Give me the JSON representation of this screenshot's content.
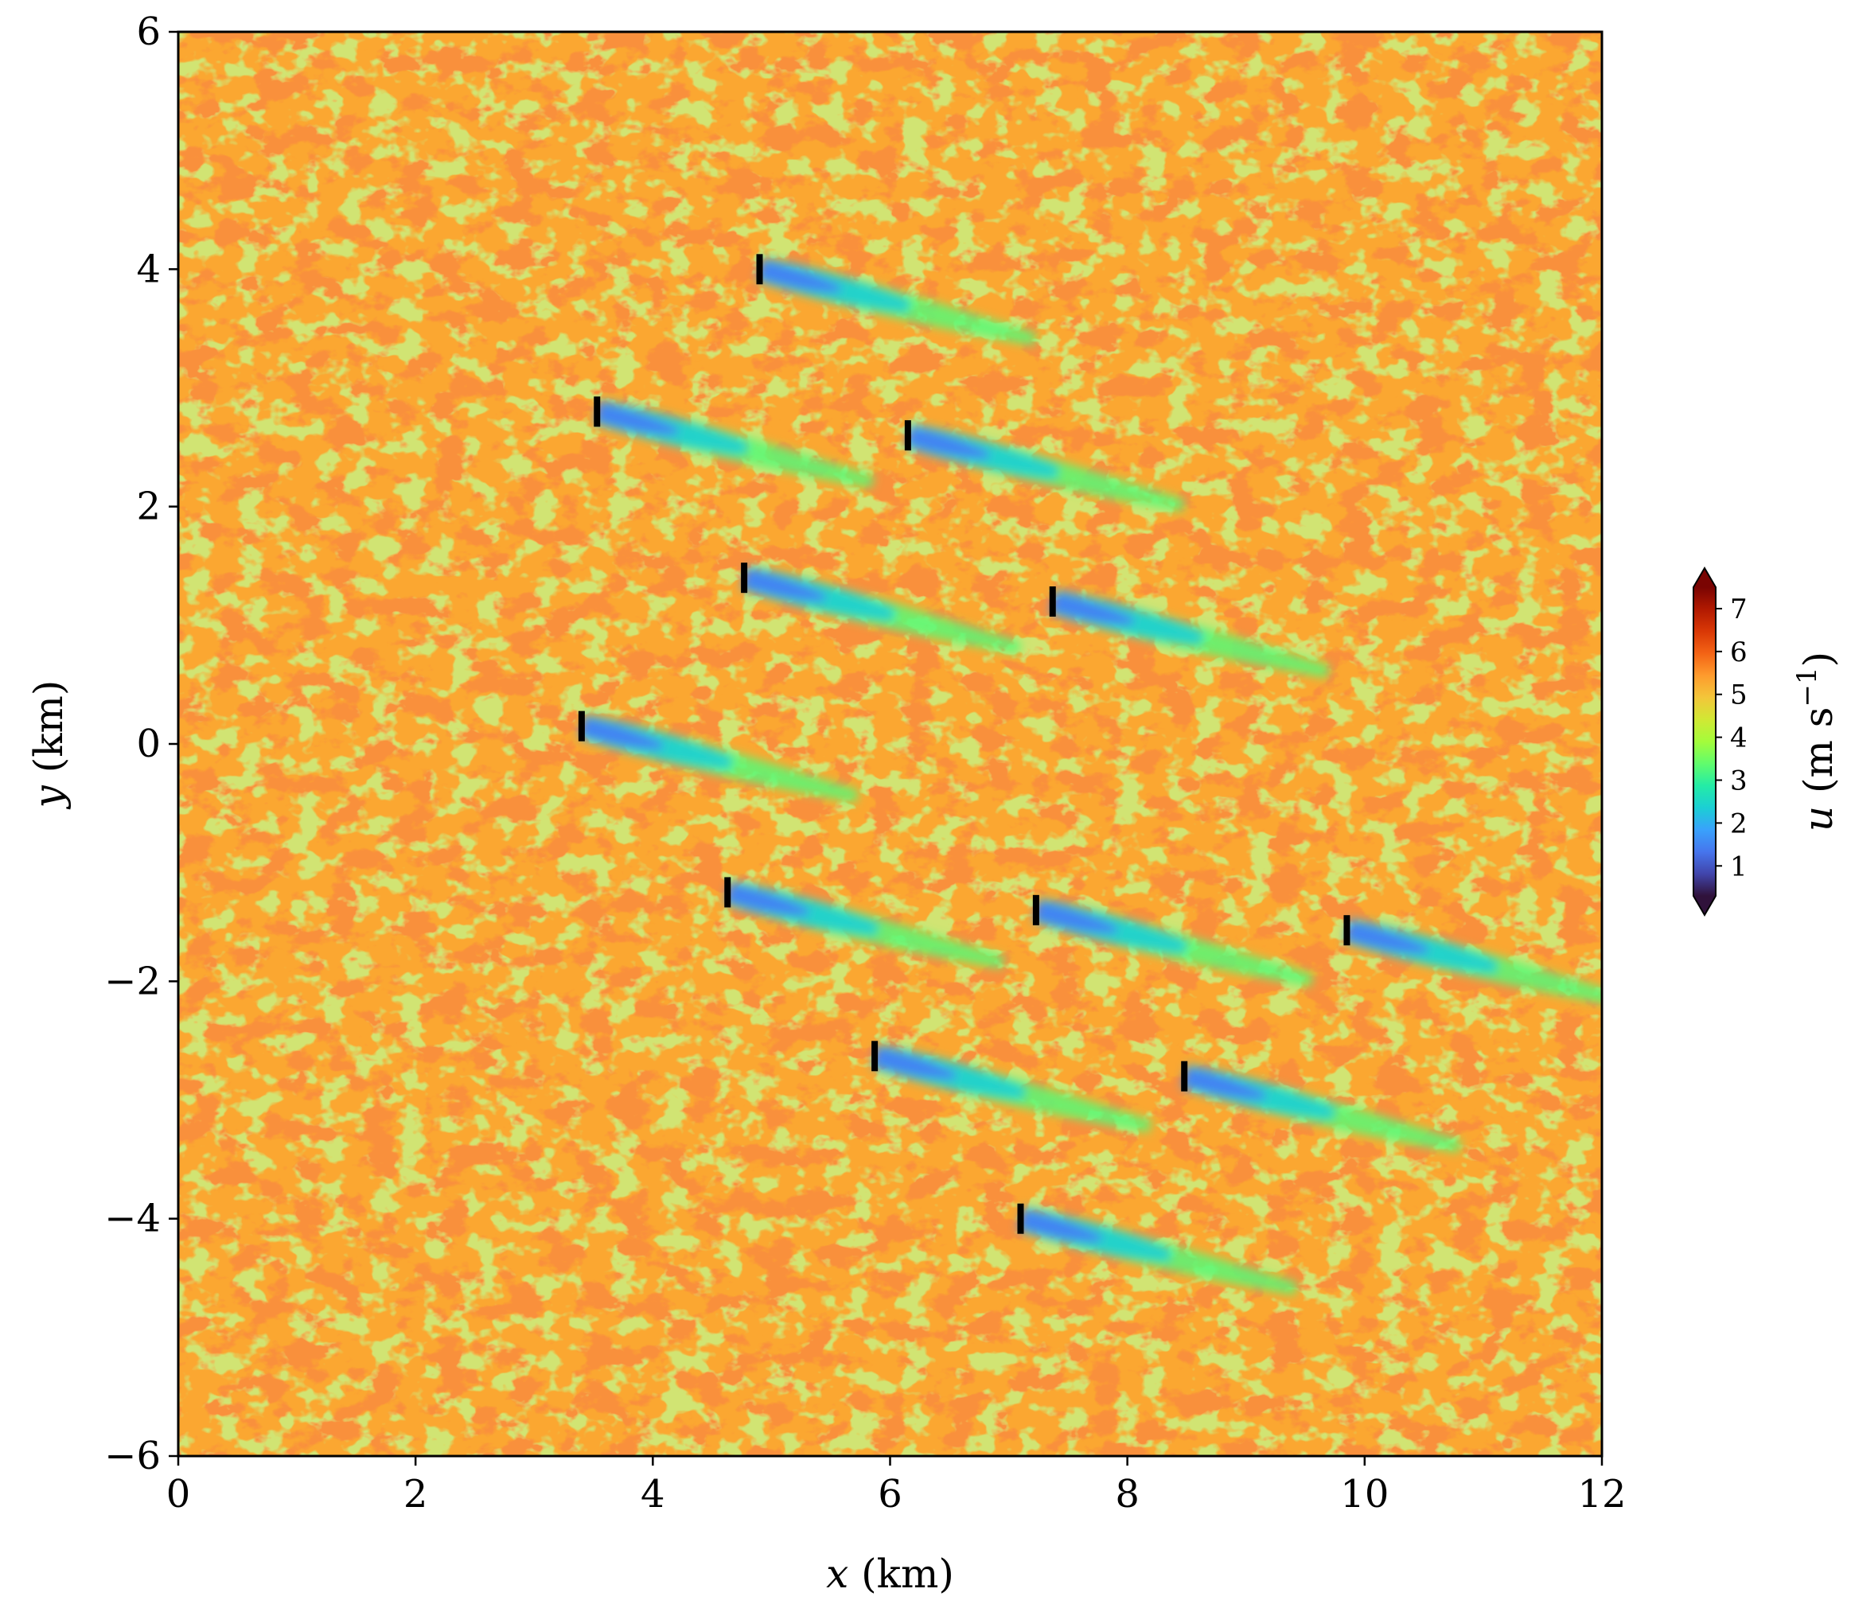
{
  "chart_data": {
    "type": "heatmap",
    "title": "",
    "xlabel": {
      "var": "x",
      "unit": " (km)"
    },
    "ylabel": {
      "var": "y",
      "unit": " (km)"
    },
    "xlim": [
      0,
      12
    ],
    "ylim": [
      -6,
      6
    ],
    "xticks": [
      0,
      2,
      4,
      6,
      8,
      10,
      12
    ],
    "yticks": [
      -6,
      -4,
      -2,
      0,
      2,
      4,
      6
    ],
    "xtick_labels": [
      "0",
      "2",
      "4",
      "6",
      "8",
      "10",
      "12"
    ],
    "ytick_labels": [
      "−6",
      "−4",
      "−2",
      "0",
      "2",
      "4",
      "6"
    ],
    "field": "u",
    "wind_direction_deg_clockwise_from_x": 14,
    "background_speed": 5.3,
    "colorbar": {
      "label_var": "u",
      "label_unit": " (m s",
      "label_exp": "−1",
      "label_close": ")",
      "min": 0.3,
      "max": 7.5,
      "ticks": [
        1,
        2,
        3,
        4,
        5,
        6,
        7
      ],
      "tick_labels": [
        "1",
        "2",
        "3",
        "4",
        "5",
        "6",
        "7"
      ],
      "extend": "both",
      "colormap": "turbo",
      "colormap_stops": [
        "#30123b",
        "#4145ab",
        "#4675ed",
        "#39a2fc",
        "#1bcfd4",
        "#24eca6",
        "#61fc6c",
        "#a4fc3b",
        "#d1e834",
        "#f3c63a",
        "#fe9b2d",
        "#f36315",
        "#d93806",
        "#b11901",
        "#7a0402"
      ]
    },
    "turbines": [
      {
        "x": 4.9,
        "y": 4.0
      },
      {
        "x": 3.53,
        "y": 2.8
      },
      {
        "x": 6.15,
        "y": 2.6
      },
      {
        "x": 4.77,
        "y": 1.4
      },
      {
        "x": 7.37,
        "y": 1.2
      },
      {
        "x": 3.4,
        "y": 0.15
      },
      {
        "x": 4.63,
        "y": -1.25
      },
      {
        "x": 7.23,
        "y": -1.4
      },
      {
        "x": 9.85,
        "y": -1.57
      },
      {
        "x": 5.87,
        "y": -2.63
      },
      {
        "x": 8.48,
        "y": -2.8
      },
      {
        "x": 7.1,
        "y": -4.0
      }
    ]
  }
}
